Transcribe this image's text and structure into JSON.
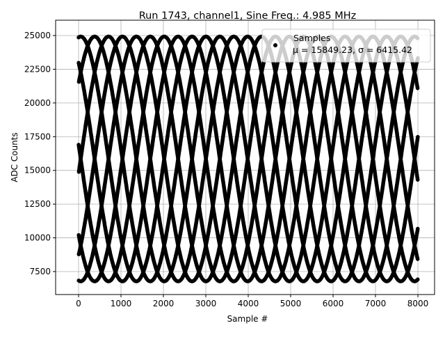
{
  "chart_data": {
    "type": "scatter",
    "title": "Run 1743, channel1, Sine Freq.: 4.985 MHz",
    "xlabel": "Sample #",
    "ylabel": "ADC Counts",
    "xlim": [
      -541,
      8393
    ],
    "ylim": [
      5796,
      26136
    ],
    "xticks": [
      0,
      1000,
      2000,
      3000,
      4000,
      5000,
      6000,
      7000,
      8000
    ],
    "yticks": [
      7500,
      10000,
      12500,
      15000,
      17500,
      20000,
      22500,
      25000
    ],
    "grid": true,
    "legend": {
      "placement": "top-right",
      "entries": [
        "Samples",
        "μ = 15849.23, σ = 6415.42"
      ]
    },
    "series": [
      {
        "name": "Samples",
        "color": "#000000",
        "n_samples": 8000,
        "model": "sine",
        "mean": 15849.23,
        "std": 6415.42,
        "amplitude": 9073,
        "min": 6776,
        "max": 24922
      }
    ]
  }
}
